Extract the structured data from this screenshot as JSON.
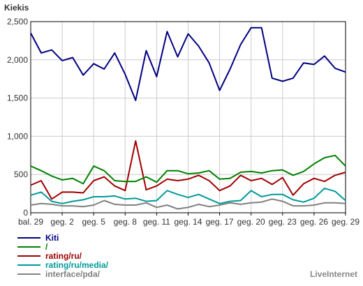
{
  "chart_data": {
    "type": "line",
    "title": "Kiekis",
    "xlabel": "",
    "ylabel": "",
    "ylim": [
      0,
      2500
    ],
    "yticks": [
      {
        "value": 0,
        "label": "0"
      },
      {
        "value": 500,
        "label": "500"
      },
      {
        "value": 1000,
        "label": "1,000"
      },
      {
        "value": 1500,
        "label": "1,500"
      },
      {
        "value": 2000,
        "label": "2,000"
      },
      {
        "value": 2500,
        "label": "2,500"
      }
    ],
    "x_tick_labels": [
      "bal. 29",
      "geg. 2",
      "geg. 5",
      "geg. 8",
      "geg. 11",
      "geg. 14",
      "geg. 17",
      "geg. 20",
      "geg. 23",
      "geg. 26",
      "geg. 29"
    ],
    "x_tick_step": 3,
    "grid": true,
    "legend_position": "bottom-left",
    "watermark": "LiveInternet",
    "series": [
      {
        "name": "Kiti",
        "color": "#000080",
        "values": [
          2350,
          2090,
          2130,
          1990,
          2030,
          1800,
          1950,
          1880,
          2090,
          1810,
          1470,
          2120,
          1780,
          2370,
          2040,
          2340,
          2180,
          1960,
          1600,
          1880,
          2200,
          2420,
          2420,
          1760,
          1720,
          1760,
          1960,
          1940,
          2050,
          1890,
          1840
        ]
      },
      {
        "name": "/",
        "color": "#008000",
        "values": [
          610,
          550,
          480,
          430,
          450,
          380,
          610,
          550,
          420,
          410,
          410,
          470,
          400,
          550,
          550,
          510,
          520,
          550,
          440,
          450,
          530,
          540,
          520,
          550,
          560,
          490,
          540,
          640,
          720,
          750,
          610
        ]
      },
      {
        "name": "rating/ru/",
        "color": "#a00000",
        "values": [
          360,
          420,
          180,
          270,
          270,
          260,
          420,
          470,
          350,
          290,
          940,
          300,
          350,
          440,
          420,
          440,
          490,
          420,
          290,
          350,
          490,
          420,
          450,
          370,
          460,
          230,
          380,
          450,
          410,
          490,
          530
        ]
      },
      {
        "name": "rating/ru/media/",
        "color": "#009999",
        "values": [
          230,
          270,
          150,
          120,
          150,
          170,
          210,
          210,
          220,
          180,
          190,
          150,
          160,
          290,
          240,
          200,
          240,
          180,
          120,
          150,
          160,
          290,
          210,
          240,
          240,
          170,
          140,
          190,
          320,
          280,
          160
        ]
      },
      {
        "name": "interface/pda/",
        "color": "#808080",
        "values": [
          100,
          120,
          110,
          90,
          90,
          80,
          100,
          160,
          110,
          100,
          100,
          130,
          70,
          100,
          50,
          70,
          110,
          80,
          100,
          130,
          110,
          130,
          140,
          180,
          150,
          90,
          90,
          100,
          130,
          130,
          120
        ]
      }
    ]
  }
}
